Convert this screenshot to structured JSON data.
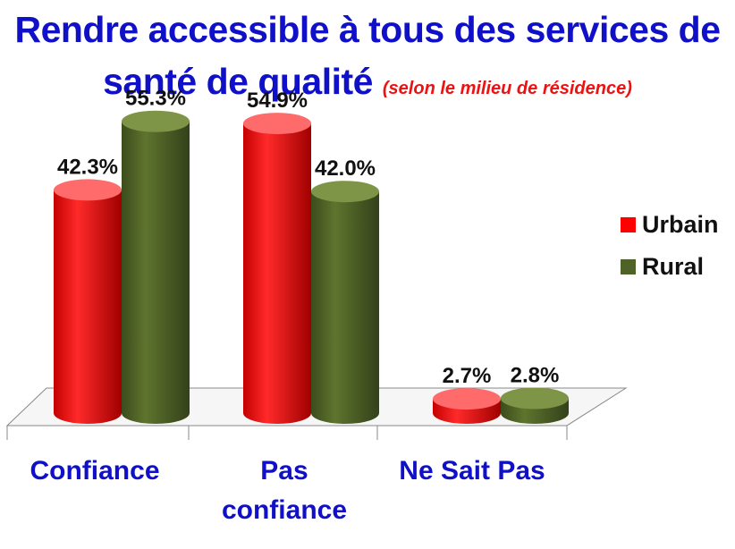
{
  "title": {
    "line1": "Rendre accessible à tous des services de",
    "line2": "santé de qualité",
    "subtitle": "(selon le milieu de résidence)"
  },
  "legend": [
    {
      "label": "Urbain",
      "color": "#ff0000"
    },
    {
      "label": "Rural",
      "color": "#4f6228"
    }
  ],
  "chart_data": {
    "type": "bar",
    "style": "3d-cylinder",
    "categories": [
      "Confiance",
      "Pas confiance",
      "Ne Sait Pas"
    ],
    "category_lines": [
      [
        "Confiance"
      ],
      [
        "Pas",
        "confiance"
      ],
      [
        "Ne Sait Pas"
      ]
    ],
    "series": [
      {
        "name": "Urbain",
        "color": "#ff0000",
        "values": [
          42.3,
          54.9,
          2.7
        ],
        "labels": [
          "42.3%",
          "54.9%",
          "2.7%"
        ]
      },
      {
        "name": "Rural",
        "color": "#4f6228",
        "values": [
          55.3,
          42.0,
          2.8
        ],
        "labels": [
          "55.3%",
          "42.0%",
          "2.8%"
        ]
      }
    ],
    "ylim": [
      0,
      60
    ],
    "grid": false,
    "legend_position": "right"
  }
}
